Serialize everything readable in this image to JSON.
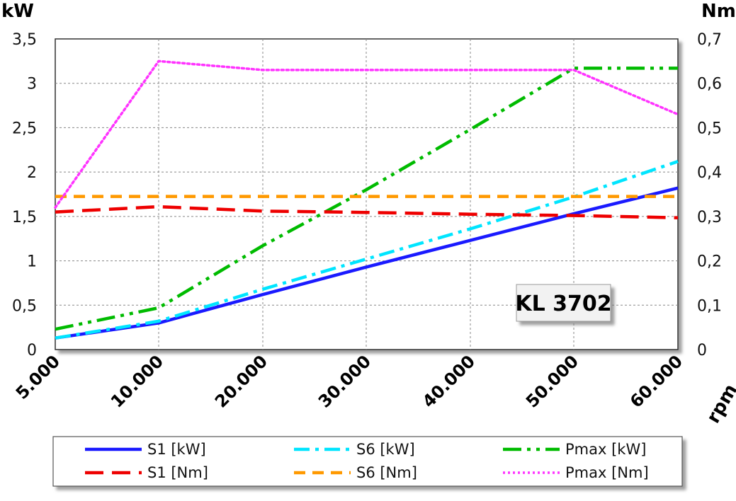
{
  "chart_data": {
    "type": "line",
    "x": [
      5000,
      10000,
      20000,
      30000,
      40000,
      50000,
      60000
    ],
    "x_tick_labels": [
      "5.000",
      "10.000",
      "20.000",
      "30.000",
      "40.000",
      "50.000",
      "60.000"
    ],
    "xlabel": "rpm",
    "ylabel_left": "kW",
    "ylabel_right": "Nm",
    "ylim_left": [
      0,
      3.5
    ],
    "ylim_right": [
      0,
      0.7
    ],
    "y_left_tick_labels": [
      "0",
      "0,5",
      "1",
      "1,5",
      "2",
      "2,5",
      "3",
      "3,5"
    ],
    "y_right_tick_labels": [
      "0",
      "0,1",
      "0,2",
      "0,3",
      "0,4",
      "0,5",
      "0,6",
      "0,7"
    ],
    "grid": true,
    "legend_position": "bottom",
    "annotation": "KL 3702",
    "series": [
      {
        "name": "S1 [kW]",
        "axis": "left",
        "color": "#1a1aff",
        "style": "solid",
        "values": [
          0.13,
          0.3,
          0.62,
          0.93,
          1.23,
          1.53,
          1.82
        ]
      },
      {
        "name": "S6 [kW]",
        "axis": "left",
        "color": "#00e5ff",
        "style": "dashdot",
        "values": [
          0.13,
          0.32,
          0.68,
          1.02,
          1.36,
          1.72,
          2.12
        ]
      },
      {
        "name": "Pmax [kW]",
        "axis": "left",
        "color": "#00bb00",
        "style": "dashdotdot",
        "values": [
          0.23,
          0.47,
          1.17,
          1.8,
          2.48,
          3.17,
          3.17
        ]
      },
      {
        "name": "S1 [Nm]",
        "axis": "right",
        "color": "#ee0000",
        "style": "longdash",
        "values": [
          0.31,
          0.322,
          0.312,
          0.309,
          0.305,
          0.302,
          0.297
        ]
      },
      {
        "name": "S6 [Nm]",
        "axis": "right",
        "color": "#ff9900",
        "style": "dash",
        "values": [
          0.345,
          0.345,
          0.345,
          0.345,
          0.345,
          0.345,
          0.345
        ]
      },
      {
        "name": "Pmax [Nm]",
        "axis": "right",
        "color": "#ff33ff",
        "style": "dot",
        "values": [
          0.32,
          0.65,
          0.63,
          0.63,
          0.63,
          0.63,
          0.53
        ]
      }
    ]
  }
}
